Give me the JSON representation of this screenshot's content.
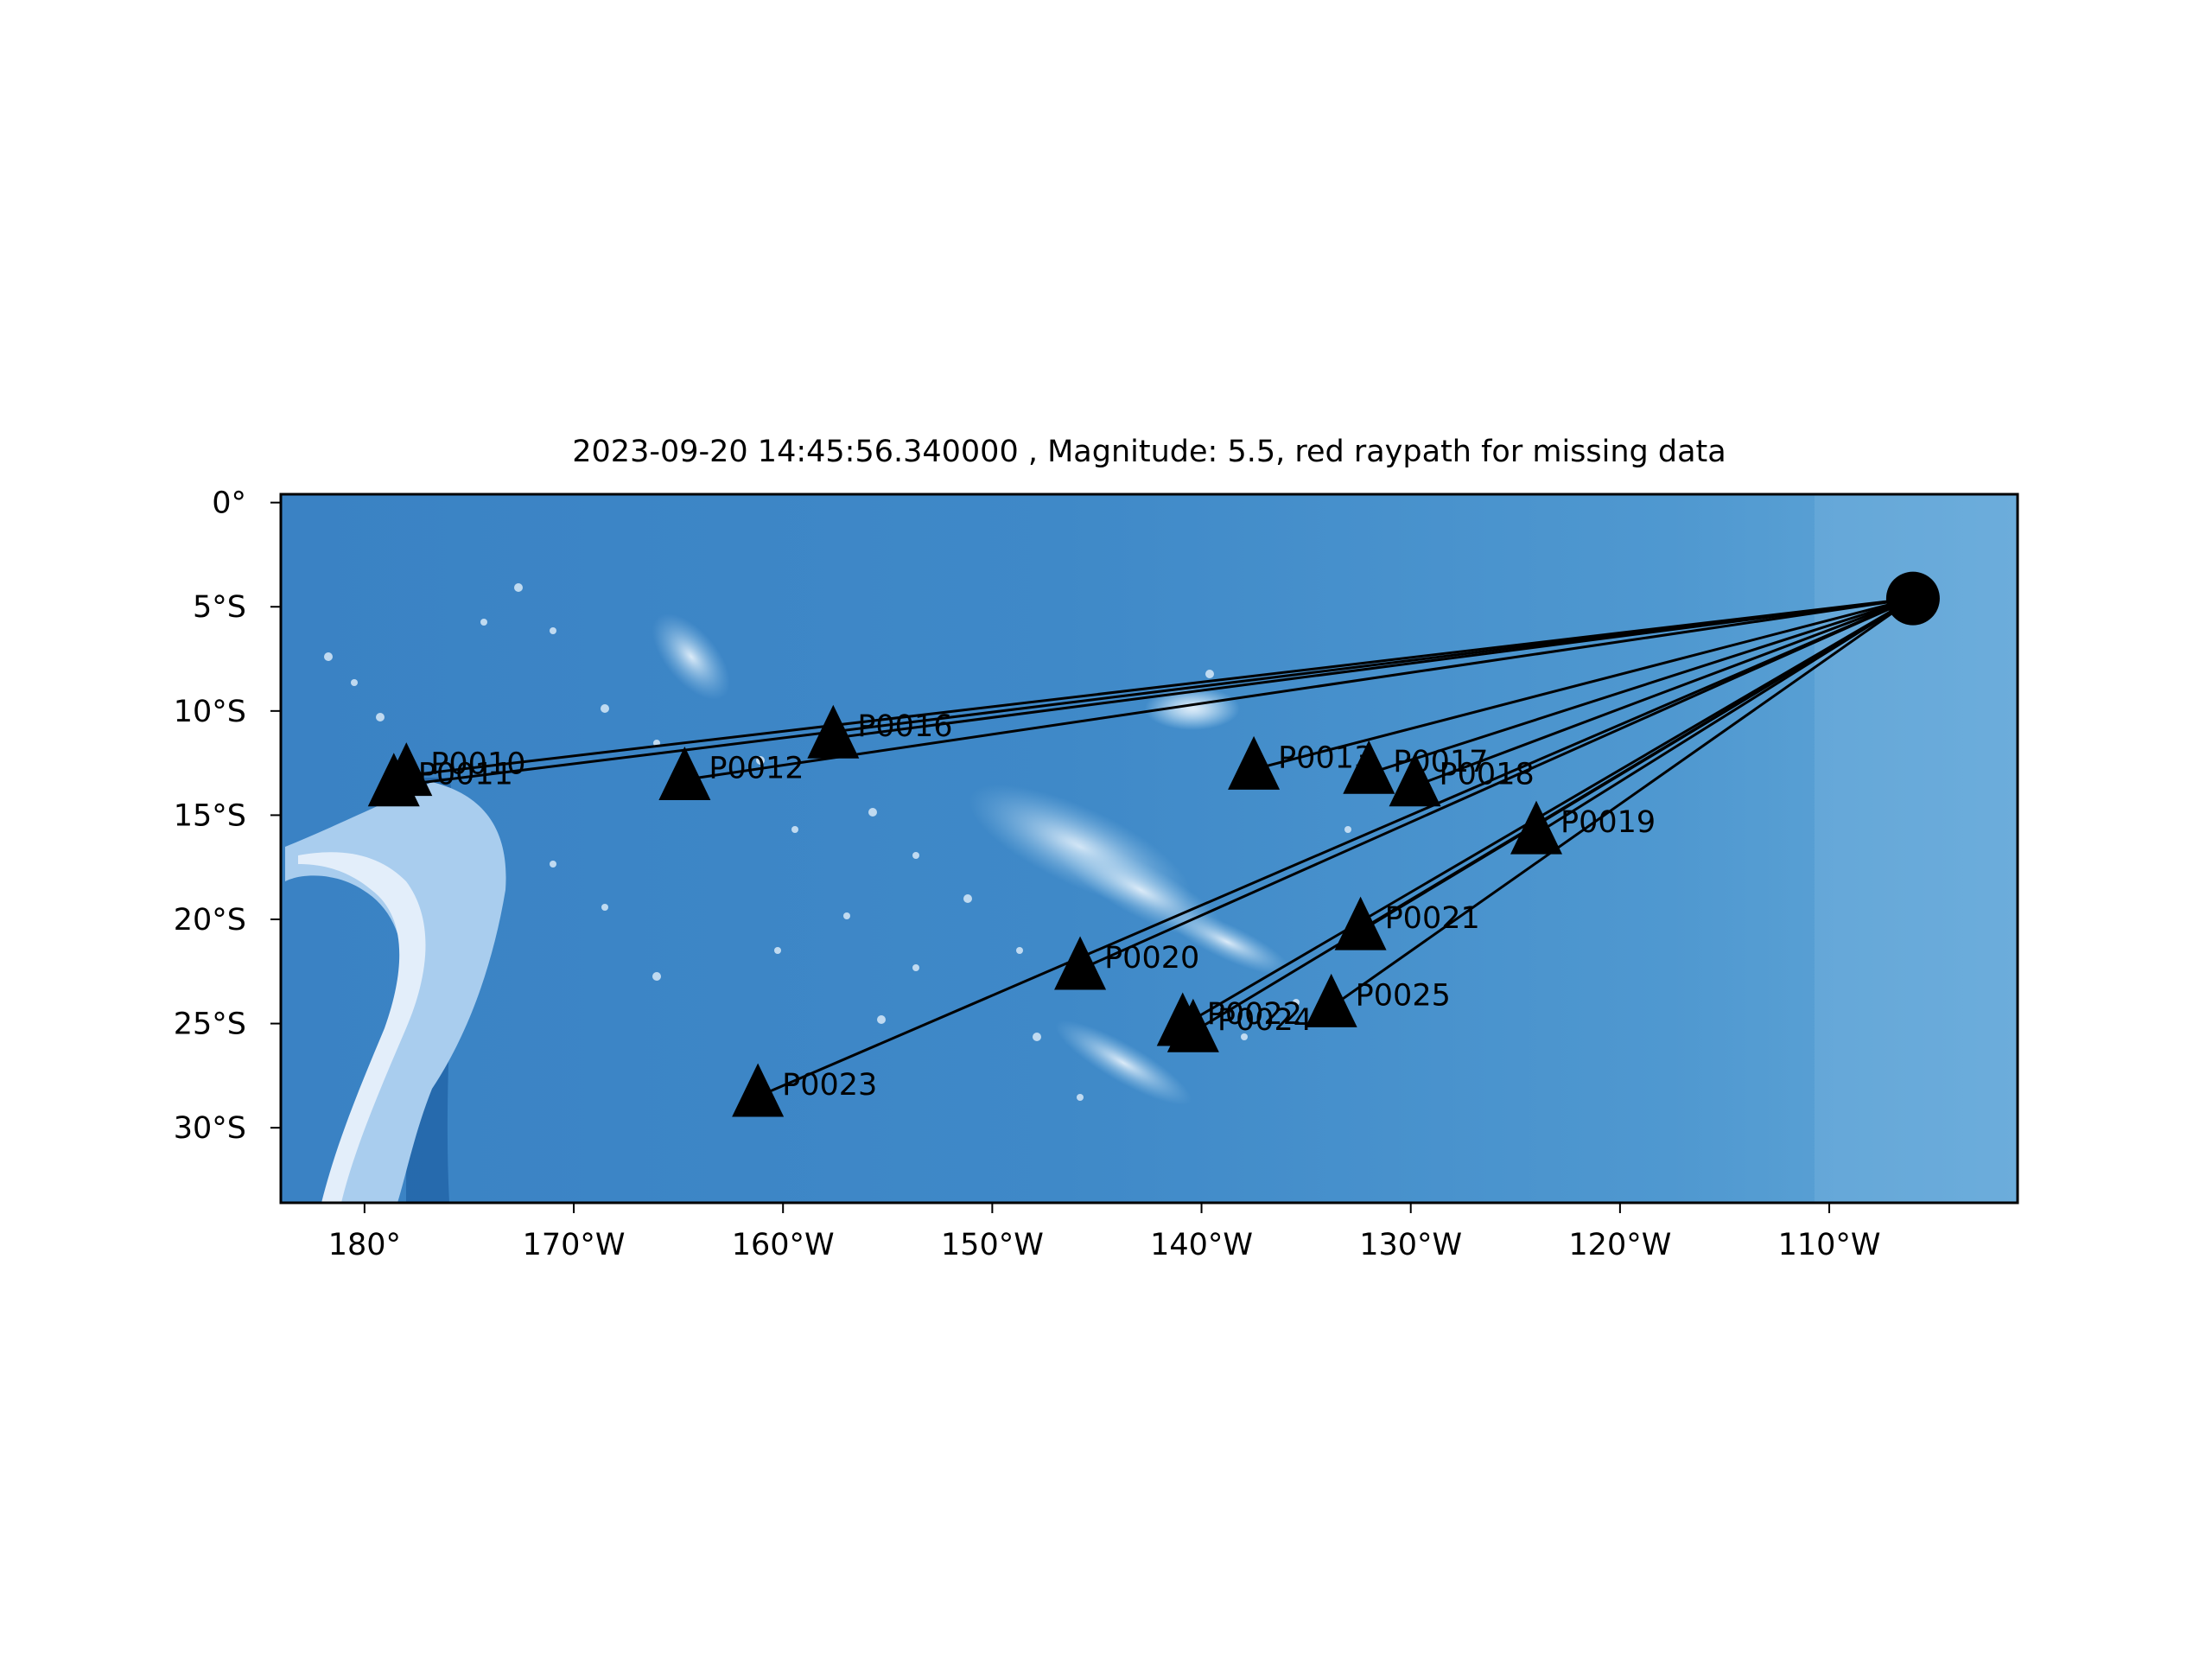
{
  "title": "2023-09-20 14:45:56.340000 , Magnitude: 5.5, red raypath for missing data",
  "map": {
    "lon_range": [
      -184.0,
      -101.0
    ],
    "lat_range": [
      -33.6,
      0.4
    ],
    "x_ticks": [
      {
        "value": -180,
        "label": "180°"
      },
      {
        "value": -170,
        "label": "170°W"
      },
      {
        "value": -160,
        "label": "160°W"
      },
      {
        "value": -150,
        "label": "150°W"
      },
      {
        "value": -140,
        "label": "140°W"
      },
      {
        "value": -130,
        "label": "130°W"
      },
      {
        "value": -120,
        "label": "120°W"
      },
      {
        "value": -110,
        "label": "110°W"
      }
    ],
    "y_ticks": [
      {
        "value": 0,
        "label": "0°"
      },
      {
        "value": -5,
        "label": "5°S"
      },
      {
        "value": -10,
        "label": "10°S"
      },
      {
        "value": -15,
        "label": "15°S"
      },
      {
        "value": -20,
        "label": "20°S"
      },
      {
        "value": -25,
        "label": "25°S"
      },
      {
        "value": -30,
        "label": "30°S"
      }
    ],
    "colors": {
      "ocean_deep": "#2f78be",
      "ocean_mid": "#4a93cf",
      "ocean_light": "#8cc0e6",
      "ridge": "#e6f1fb",
      "marker": "#000000",
      "raypath": "#000000"
    }
  },
  "event": {
    "lon": -106.0,
    "lat": -4.6,
    "marker": "circle"
  },
  "stations": [
    {
      "name": "P0010",
      "lon": -178.0,
      "lat": -13.1
    },
    {
      "name": "P0011",
      "lon": -178.6,
      "lat": -13.6
    },
    {
      "name": "P0012",
      "lon": -164.7,
      "lat": -13.3
    },
    {
      "name": "P0016",
      "lon": -157.6,
      "lat": -11.3
    },
    {
      "name": "P0013",
      "lon": -137.5,
      "lat": -12.8
    },
    {
      "name": "P0017",
      "lon": -132.0,
      "lat": -13.0
    },
    {
      "name": "P0018",
      "lon": -129.8,
      "lat": -13.6
    },
    {
      "name": "P0019",
      "lon": -124.0,
      "lat": -15.9
    },
    {
      "name": "P0020",
      "lon": -145.8,
      "lat": -22.4
    },
    {
      "name": "P0021",
      "lon": -132.4,
      "lat": -20.5
    },
    {
      "name": "P0022",
      "lon": -140.9,
      "lat": -25.1
    },
    {
      "name": "P0024",
      "lon": -140.4,
      "lat": -25.4
    },
    {
      "name": "P0025",
      "lon": -133.8,
      "lat": -24.2
    },
    {
      "name": "P0023",
      "lon": -161.2,
      "lat": -28.5
    }
  ]
}
